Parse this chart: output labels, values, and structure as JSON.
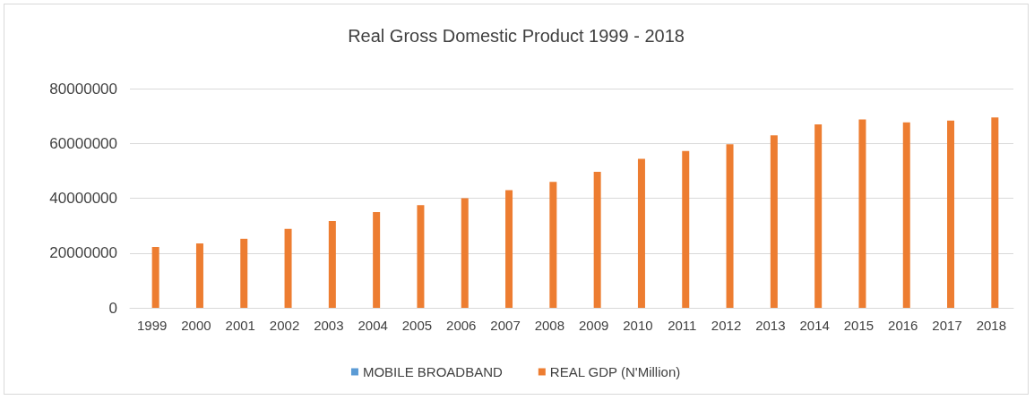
{
  "chart_data": {
    "type": "bar",
    "title": "Real Gross Domestic Product 1999 - 2018",
    "categories": [
      "1999",
      "2000",
      "2001",
      "2002",
      "2003",
      "2004",
      "2005",
      "2006",
      "2007",
      "2008",
      "2009",
      "2010",
      "2011",
      "2012",
      "2013",
      "2014",
      "2015",
      "2016",
      "2017",
      "2018"
    ],
    "series": [
      {
        "name": "MOBILE BROADBAND",
        "color": "#5b9bd5",
        "values": [
          0,
          0,
          0,
          0,
          0,
          0,
          0,
          0,
          0,
          0,
          0,
          0,
          0,
          0,
          0,
          0,
          0,
          0,
          0,
          0
        ]
      },
      {
        "name": "REAL GDP (N'Million)",
        "color": "#ed7d31",
        "values": [
          22200000,
          23500000,
          25200000,
          28800000,
          31700000,
          34900000,
          37500000,
          40000000,
          42900000,
          46000000,
          49600000,
          54400000,
          57200000,
          59700000,
          62900000,
          66900000,
          68700000,
          67700000,
          68300000,
          69500000
        ]
      }
    ],
    "ylim": [
      0,
      80000000
    ],
    "yticks": [
      0,
      20000000,
      40000000,
      60000000,
      80000000
    ],
    "grid": "y",
    "legend": "bottom"
  }
}
